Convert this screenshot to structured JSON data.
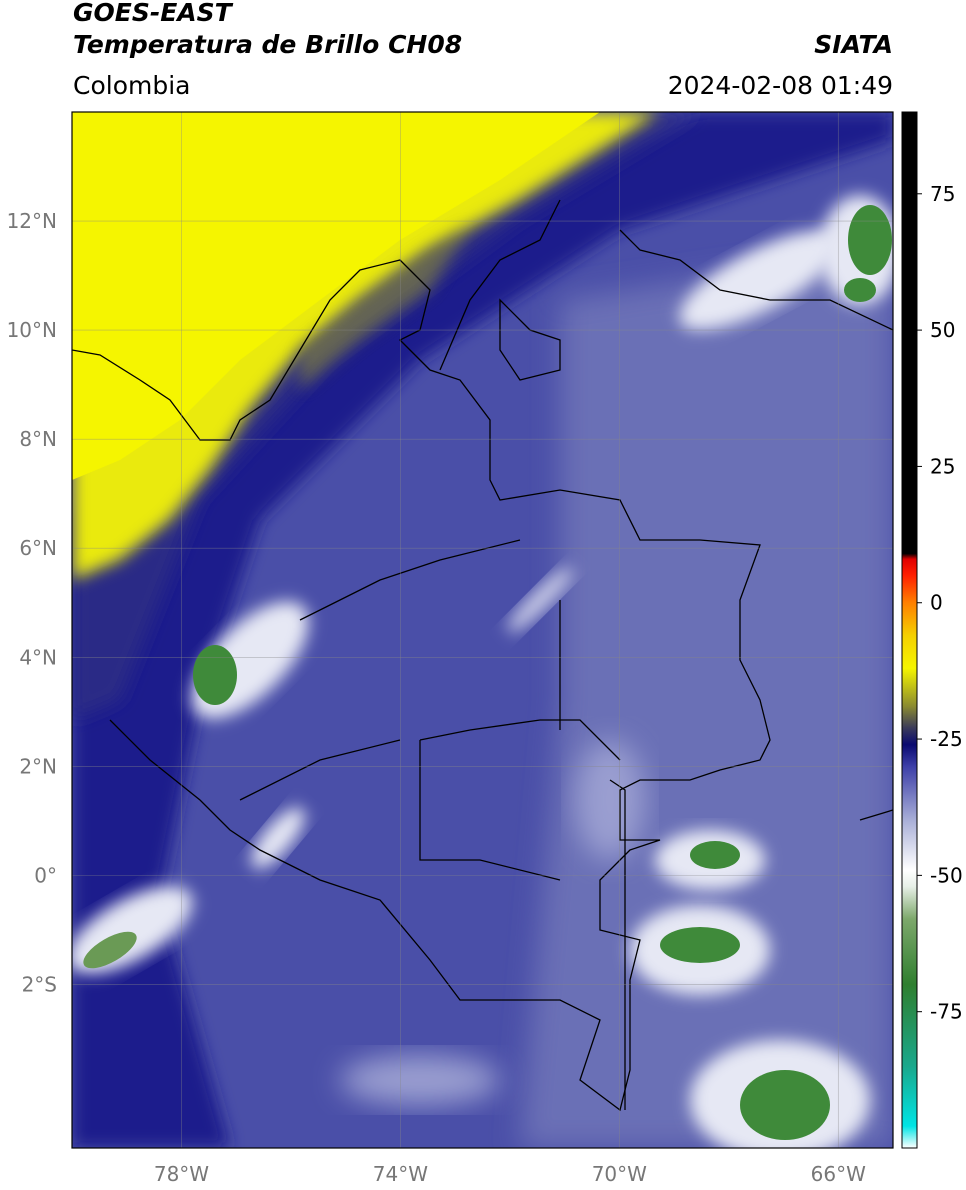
{
  "header": {
    "satellite": "GOES-EAST",
    "product": "Temperatura de Brillo CH08",
    "agency": "SIATA",
    "region": "Colombia",
    "datetime": "2024-02-08 01:49"
  },
  "map": {
    "extent": {
      "lon_min": -80.0,
      "lon_max": -65.0,
      "lat_min": -5.0,
      "lat_max": 14.0
    },
    "lat_ticks": [
      {
        "value": 12,
        "label": "12°N"
      },
      {
        "value": 10,
        "label": "10°N"
      },
      {
        "value": 8,
        "label": "8°N"
      },
      {
        "value": 6,
        "label": "6°N"
      },
      {
        "value": 4,
        "label": "4°N"
      },
      {
        "value": 2,
        "label": "2°N"
      },
      {
        "value": 0,
        "label": "0°"
      },
      {
        "value": -2,
        "label": "2°S"
      }
    ],
    "lon_ticks": [
      {
        "value": -78,
        "label": "78°W"
      },
      {
        "value": -74,
        "label": "74°W"
      },
      {
        "value": -70,
        "label": "70°W"
      },
      {
        "value": -66,
        "label": "66°W"
      }
    ],
    "gridlines": true
  },
  "colorbar": {
    "range": [
      -100,
      90
    ],
    "ticks": [
      {
        "value": 75,
        "label": "75"
      },
      {
        "value": 50,
        "label": "50"
      },
      {
        "value": 25,
        "label": "25"
      },
      {
        "value": 0,
        "label": "0"
      },
      {
        "value": -25,
        "label": "-25"
      },
      {
        "value": -50,
        "label": "-50"
      },
      {
        "value": -75,
        "label": "-75"
      }
    ],
    "stops": [
      {
        "value": -100,
        "color": "#ffffff"
      },
      {
        "value": -96,
        "color": "#00e5e5"
      },
      {
        "value": -85,
        "color": "#1aa88c"
      },
      {
        "value": -70,
        "color": "#2f7f2f"
      },
      {
        "value": -58,
        "color": "#7da86b"
      },
      {
        "value": -52,
        "color": "#e8f0e8"
      },
      {
        "value": -49,
        "color": "#ffffff"
      },
      {
        "value": -40,
        "color": "#aab0d8"
      },
      {
        "value": -30,
        "color": "#3d3fa8"
      },
      {
        "value": -26,
        "color": "#0a0a70"
      },
      {
        "value": -23,
        "color": "#3a3a5a"
      },
      {
        "value": -19,
        "color": "#8a8a30"
      },
      {
        "value": -12,
        "color": "#f5f500"
      },
      {
        "value": -6,
        "color": "#f5d000"
      },
      {
        "value": 0,
        "color": "#ff8000"
      },
      {
        "value": 5,
        "color": "#ff2000"
      },
      {
        "value": 8,
        "color": "#e00000"
      },
      {
        "value": 9,
        "color": "#000000"
      },
      {
        "value": 90,
        "color": "#000000"
      }
    ]
  },
  "colors": {
    "dry_air": "#f0f000",
    "deep_blue": "#1a1c8c",
    "mid_blue": "#3e42a0",
    "light_blue": "#6a70b8",
    "cloud_white": "#e6e8f4",
    "cold_green": "#3f8a3a"
  }
}
